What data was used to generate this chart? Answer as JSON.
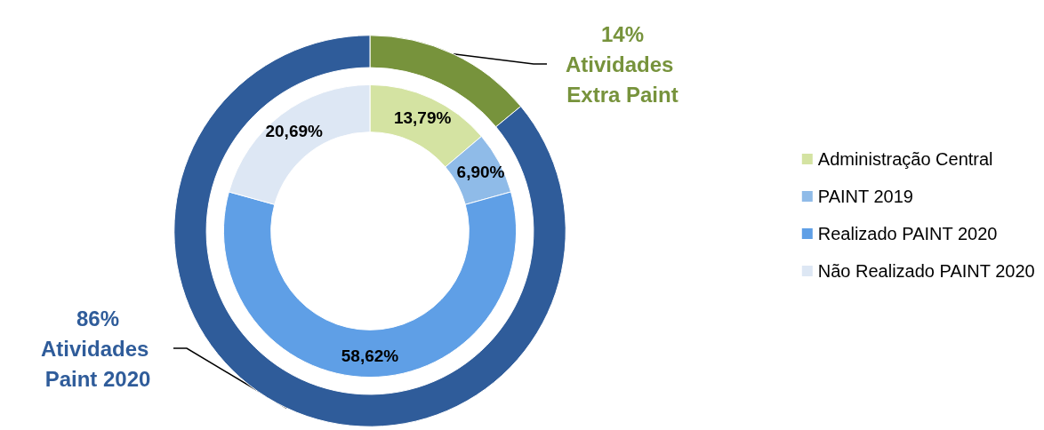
{
  "chart_data": [
    {
      "type": "donut",
      "categories": [
        "Atividades Extra Paint",
        "Atividades Paint 2020"
      ],
      "values": [
        14,
        86
      ],
      "colors": [
        "#77933c",
        "#2f5c9a"
      ],
      "value_labels": [
        "14%",
        "86%"
      ]
    },
    {
      "type": "donut",
      "legend": "right",
      "categories": [
        "Administração Central",
        "PAINT 2019",
        "Realizado PAINT 2020",
        "Não Realizado PAINT 2020"
      ],
      "values": [
        13.79,
        6.9,
        58.62,
        20.69
      ],
      "colors": [
        "#d4e3a2",
        "#8fbbe8",
        "#5f9fe6",
        "#dde7f4"
      ],
      "value_labels": [
        "13,79%",
        "6,90%",
        "58,62%",
        "20,69%"
      ]
    }
  ]
}
